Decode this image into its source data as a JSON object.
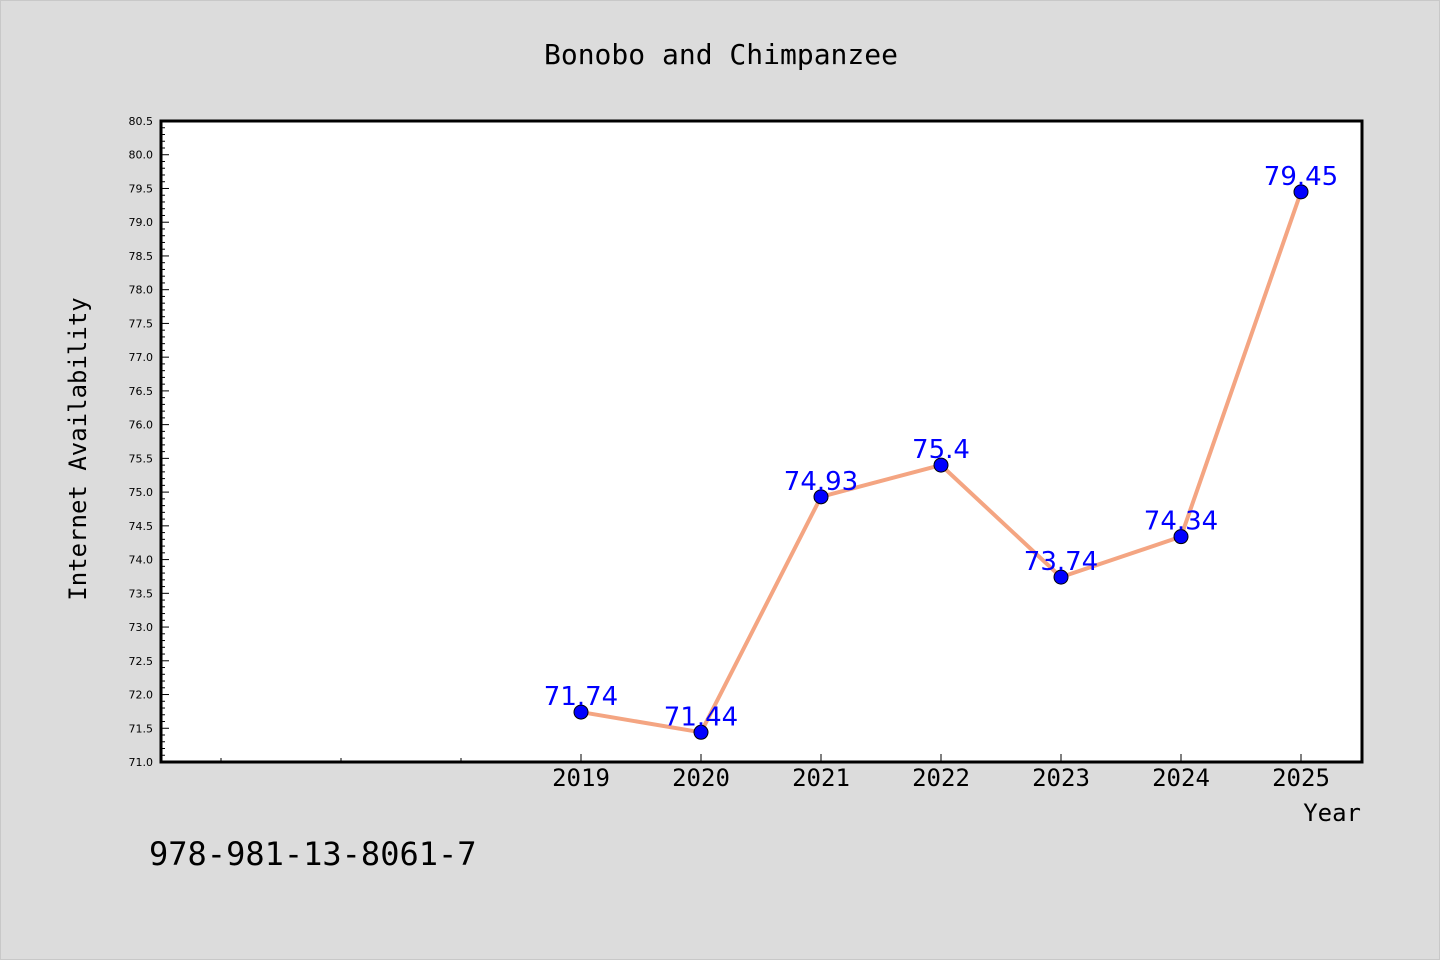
{
  "chart_data": {
    "type": "line",
    "title": "Bonobo and Chimpanzee",
    "xlabel": "Year",
    "ylabel": "Internet Availability",
    "categories": [
      "2019",
      "2020",
      "2021",
      "2022",
      "2023",
      "2024",
      "2025"
    ],
    "series": [
      {
        "values": [
          71.74,
          71.44,
          74.93,
          75.4,
          73.74,
          74.34,
          79.45
        ],
        "data_labels": [
          "71.74",
          "71.44",
          "74.93",
          "75.4",
          "73.74",
          "74.34",
          "79.45"
        ]
      }
    ],
    "ylim": [
      71.0,
      80.5
    ],
    "y_ticks": [
      "71.0",
      "71.5",
      "72.0",
      "72.5",
      "73.0",
      "73.5",
      "74.0",
      "74.5",
      "75.0",
      "75.5",
      "76.0",
      "76.5",
      "77.0",
      "77.5",
      "78.0",
      "78.5",
      "79.0",
      "79.5",
      "80.0",
      "80.5"
    ],
    "grid": false,
    "colors": {
      "line": "#f4a582",
      "marker": "#0000ff",
      "data_label": "#0000ff",
      "background": "#dcdcdc",
      "plot_background": "#ffffff"
    }
  },
  "annotation": "978-981-13-8061-7"
}
